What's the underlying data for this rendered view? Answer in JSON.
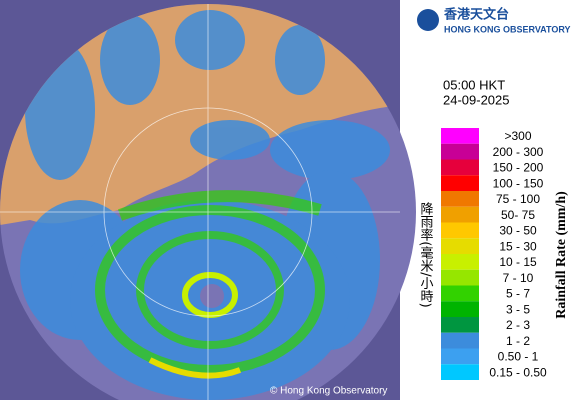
{
  "header": {
    "logo_chinese": "香港天文台",
    "logo_english": "HONG KONG OBSERVATORY"
  },
  "time": "05:00 HKT",
  "date": "24-09-2025",
  "legend": {
    "title": "Rainfall Rate (mm/h)",
    "title_chinese": "降雨率(毫米/小時)",
    "items": [
      {
        "label": ">300",
        "color": "#ff00ff"
      },
      {
        "label": "200 - 300",
        "color": "#c80096"
      },
      {
        "label": "150 - 200",
        "color": "#e6003c"
      },
      {
        "label": "100 - 150",
        "color": "#ff0000"
      },
      {
        "label": "75 - 100",
        "color": "#f07800"
      },
      {
        "label": "50- 75",
        "color": "#f0a000"
      },
      {
        "label": "30 - 50",
        "color": "#ffc800"
      },
      {
        "label": "15 - 30",
        "color": "#e6dc00"
      },
      {
        "label": "10 - 15",
        "color": "#c8f000"
      },
      {
        "label": "7 - 10",
        "color": "#96e600"
      },
      {
        "label": "5 - 7",
        "color": "#32d200"
      },
      {
        "label": "3 - 5",
        "color": "#00b400"
      },
      {
        "label": "2 - 3",
        "color": "#009640"
      },
      {
        "label": "1 - 2",
        "color": "#3c8cdc"
      },
      {
        "label": "0.50 - 1",
        "color": "#3ca0f0"
      },
      {
        "label": "0.15 - 0.50",
        "color": "#00c8ff"
      }
    ]
  },
  "copyright": "© Hong Kong Observatory"
}
